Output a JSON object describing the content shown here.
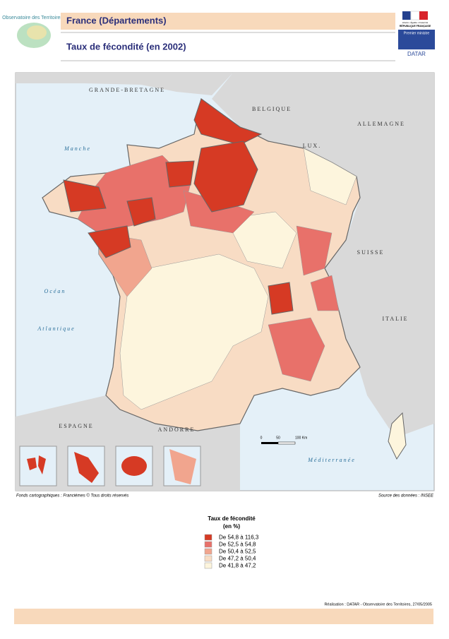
{
  "header": {
    "subtitle": "France (Départements)",
    "title": "Taux de fécondité (en 2002)",
    "logo_left": "Observatoire des Territoires",
    "logo_right": {
      "motto": "Liberté • Égalité • Fraternité",
      "republic": "RÉPUBLIQUE FRANÇAISE",
      "office": "Premier ministre",
      "agency": "DATAR"
    }
  },
  "map": {
    "labels": {
      "uk": "GRANDE-BRETAGNE",
      "belgium": "BELGIQUE",
      "germany": "ALLEMAGNE",
      "lux": "LUX.",
      "switzerland": "SUISSE",
      "italy": "ITALIE",
      "spain": "ESPAGNE",
      "andorra": "ANDORRE",
      "channel": "Manche",
      "ocean": "Océan",
      "atlantic": "Atlantique",
      "med": "Méditerranée"
    },
    "scale": [
      "0",
      "50",
      "100 Km"
    ],
    "credit": "Fonds cartographiques : Franciémes © Tous droits réservés",
    "source": "Source des données : INSEE"
  },
  "legend": {
    "title": "Taux de fécondité",
    "unit": "(en %)",
    "items": [
      {
        "label": "De 54,8 à 116,3",
        "color": "#d63a24"
      },
      {
        "label": "De 52,5 à 54,8",
        "color": "#e8716a"
      },
      {
        "label": "De 50,4 à 52,5",
        "color": "#f1a58e"
      },
      {
        "label": "De 47,2 à 50,4",
        "color": "#f8dcc4"
      },
      {
        "label": "De 41,8 à 47,2",
        "color": "#fdf5dd"
      }
    ]
  },
  "footer": "Réalisation : DATAR - Observatoire des Territoires, 27/05/2005"
}
